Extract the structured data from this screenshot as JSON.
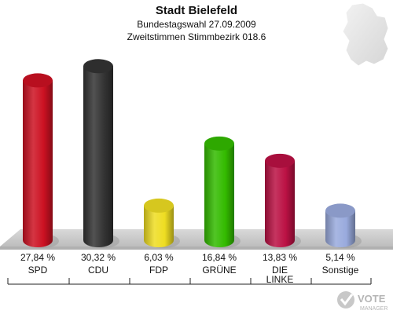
{
  "header": {
    "title": "Stadt Bielefeld",
    "subtitle1": "Bundestagswahl 27.09.2009",
    "subtitle2": "Zweitstimmen Stimmbezirk 018.6"
  },
  "logo": {
    "text_line1": "VOTE",
    "text_line2": "MANAGER"
  },
  "chart_data": {
    "type": "bar",
    "categories": [
      "SPD",
      "CDU",
      "FDP",
      "GRÜNE",
      "DIE LINKE",
      "Sonstige"
    ],
    "values": [
      27.84,
      30.32,
      6.03,
      16.84,
      13.83,
      5.14
    ],
    "value_labels": [
      "27,84 %",
      "30,32 %",
      "6,03 %",
      "16,84 %",
      "13,83 %",
      "5,14 %"
    ],
    "colors": [
      "#cc1122",
      "#333333",
      "#eedd22",
      "#33bb00",
      "#bb1144",
      "#99aadd"
    ],
    "ylim": [
      0,
      32
    ],
    "grid": false,
    "legend": "none"
  }
}
